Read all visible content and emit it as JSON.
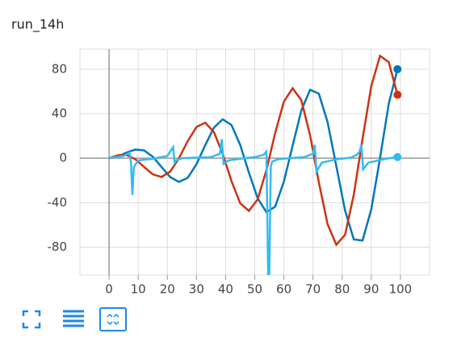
{
  "chart_data": {
    "type": "line",
    "title": "run_14h",
    "xlim": [
      -10,
      110
    ],
    "ylim": [
      -105,
      98
    ],
    "xticks": [
      0,
      10,
      20,
      30,
      40,
      50,
      60,
      70,
      80,
      90,
      100
    ],
    "yticks": [
      -80,
      -40,
      0,
      40,
      80
    ],
    "grid": true,
    "series": [
      {
        "color": "#0077bb",
        "x": [
          0,
          3,
          6,
          9,
          12,
          15,
          18,
          21,
          24,
          27,
          30,
          33,
          36,
          39,
          42,
          45,
          48,
          51,
          54,
          57,
          60,
          63,
          66,
          69,
          72,
          75,
          78,
          81,
          84,
          87,
          90,
          93,
          96,
          99
        ],
        "values": [
          0,
          1.5,
          5.1,
          7.8,
          7,
          1.4,
          -7.9,
          -17,
          -21.3,
          -17.6,
          -5.4,
          11.7,
          27.5,
          35,
          29.9,
          12,
          -13,
          -36,
          -48.5,
          -43.6,
          -21,
          11.3,
          43,
          61.5,
          58,
          32.4,
          -7,
          -47,
          -73,
          -74,
          -46,
          0,
          49,
          80
        ]
      },
      {
        "color": "#cc3311",
        "x": [
          0,
          3,
          6,
          9,
          12,
          15,
          18,
          21,
          24,
          27,
          30,
          33,
          36,
          39,
          42,
          45,
          48,
          51,
          54,
          57,
          60,
          63,
          66,
          69,
          72,
          75,
          78,
          81,
          84,
          87,
          90,
          93,
          96,
          99
        ],
        "values": [
          0,
          2.7,
          2.9,
          -0.9,
          -7.8,
          -14.5,
          -16.9,
          -12,
          0,
          15.4,
          28.1,
          31.9,
          23.5,
          3.9,
          -20.4,
          -40.4,
          -47.4,
          -37,
          -10.9,
          22.5,
          50.9,
          62.9,
          52.1,
          20.5,
          -21.6,
          -59.3,
          -77.8,
          -68.9,
          -32.8,
          17.4,
          64.8,
          92,
          86.4,
          57
        ]
      },
      {
        "color": "#33bbee",
        "x": [
          0,
          5,
          7,
          7.5,
          8,
          8.5,
          10,
          15,
          20,
          22,
          22.5,
          23,
          25,
          30,
          35,
          38,
          38.7,
          39.3,
          41,
          45,
          50,
          53,
          54,
          54.6,
          55,
          55.5,
          56,
          58,
          62,
          67,
          70,
          70.6,
          71.2,
          73,
          78,
          83,
          85,
          86,
          86.6,
          87.2,
          89,
          95,
          99
        ],
        "values": [
          0,
          2,
          5,
          -3,
          -33,
          -8,
          -2,
          -0.5,
          2,
          10,
          -4,
          -2,
          0,
          0.5,
          1,
          4,
          17,
          -5,
          -2,
          -0.5,
          1,
          3,
          6,
          -105,
          -105,
          -8,
          -3,
          -1,
          0,
          1,
          4,
          12,
          -12,
          -4,
          -1,
          0.5,
          3,
          6,
          12,
          -10,
          -4,
          -0.5,
          1
        ]
      }
    ]
  }
}
